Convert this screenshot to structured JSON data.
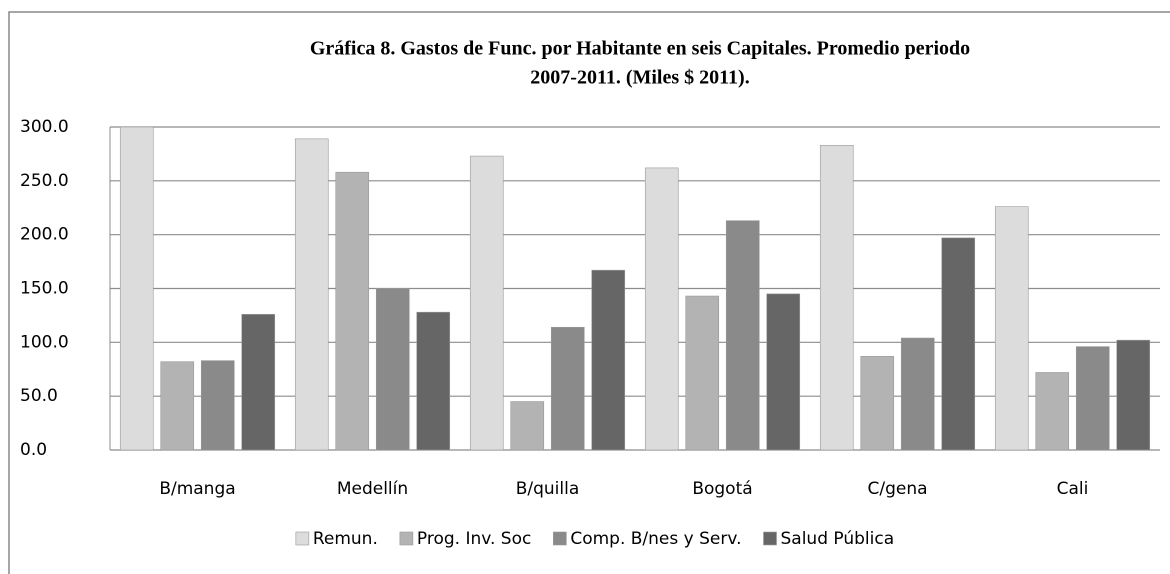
{
  "chart_data": {
    "type": "bar",
    "title": [
      "Gráfica 8. Gastos de Func. por Habitante en seis  Capitales. Promedio periodo",
      "2007-2011. (Miles $ 2011)."
    ],
    "categories": [
      "B/manga",
      "Medellín",
      "B/quilla",
      "Bogotá",
      "C/gena",
      "Cali"
    ],
    "series": [
      {
        "name": "Remun.",
        "color": "#dcdcdc",
        "values": [
          300,
          289,
          273,
          262,
          283,
          226
        ]
      },
      {
        "name": "Prog. Inv. Soc",
        "color": "#b3b3b3",
        "values": [
          82,
          258,
          45,
          143,
          87,
          72
        ]
      },
      {
        "name": "Comp. B/nes y Serv.",
        "color": "#8a8a8a",
        "values": [
          83,
          150,
          114,
          213,
          104,
          96
        ]
      },
      {
        "name": "Salud Pública",
        "color": "#666666",
        "values": [
          126,
          128,
          167,
          145,
          197,
          102
        ]
      }
    ],
    "ylim": [
      0,
      300
    ],
    "yticks": [
      {
        "value": 0,
        "label": "0.0"
      },
      {
        "value": 50,
        "label": "50.0"
      },
      {
        "value": 100,
        "label": "100.0"
      },
      {
        "value": 150,
        "label": "150.0"
      },
      {
        "value": 200,
        "label": "200.0"
      },
      {
        "value": 250,
        "label": "250.0"
      },
      {
        "value": 300,
        "label": "300.0"
      }
    ],
    "grid": true
  }
}
